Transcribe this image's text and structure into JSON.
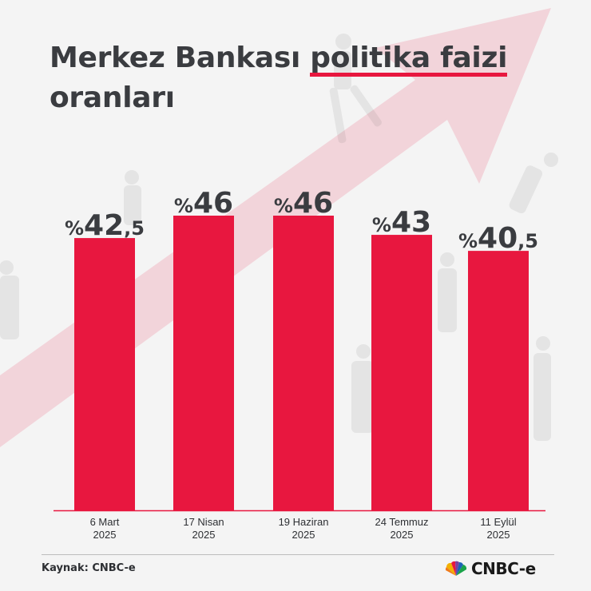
{
  "title_main": "Merkez Bankası ",
  "title_highlight": "politika faizi",
  "title_line2": "oranları",
  "source_text": "Kaynak: CNBC-e",
  "logo_text": "CNBC-e",
  "colors": {
    "bar": "#e8173f",
    "text": "#3a3c40",
    "axis": "#e8173f",
    "background": "#f4f4f4"
  },
  "chart_data": {
    "type": "bar",
    "categories": [
      [
        "6 Mart",
        "2025"
      ],
      [
        "17 Nisan",
        "2025"
      ],
      [
        "19 Haziran",
        "2025"
      ],
      [
        "24 Temmuz",
        "2025"
      ],
      [
        "11 Eylül",
        "2025"
      ]
    ],
    "values": [
      42.5,
      46,
      46,
      43,
      40.5
    ],
    "data_labels": [
      {
        "prefix": "%",
        "int": "42",
        "dec": ",5"
      },
      {
        "prefix": "%",
        "int": "46",
        "dec": ""
      },
      {
        "prefix": "%",
        "int": "46",
        "dec": ""
      },
      {
        "prefix": "%",
        "int": "43",
        "dec": ""
      },
      {
        "prefix": "%",
        "int": "40",
        "dec": ",5"
      }
    ],
    "title": "Merkez Bankası politika faizi oranları",
    "xlabel": "",
    "ylabel": "",
    "ylim": [
      0,
      46
    ],
    "grid": false,
    "legend": "none"
  }
}
